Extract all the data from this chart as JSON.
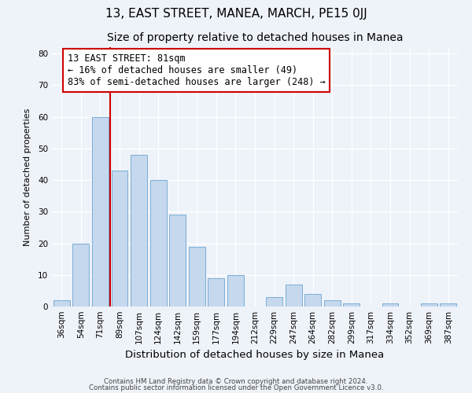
{
  "title": "13, EAST STREET, MANEA, MARCH, PE15 0JJ",
  "subtitle": "Size of property relative to detached houses in Manea",
  "xlabel": "Distribution of detached houses by size in Manea",
  "ylabel": "Number of detached properties",
  "bar_labels": [
    "36sqm",
    "54sqm",
    "71sqm",
    "89sqm",
    "107sqm",
    "124sqm",
    "142sqm",
    "159sqm",
    "177sqm",
    "194sqm",
    "212sqm",
    "229sqm",
    "247sqm",
    "264sqm",
    "282sqm",
    "299sqm",
    "317sqm",
    "334sqm",
    "352sqm",
    "369sqm",
    "387sqm"
  ],
  "bar_values": [
    2,
    20,
    60,
    43,
    48,
    40,
    29,
    19,
    9,
    10,
    0,
    3,
    7,
    4,
    2,
    1,
    0,
    1,
    0,
    1,
    1
  ],
  "bar_color": "#c5d8ee",
  "bar_edge_color": "#7aaed4",
  "vline_color": "#cc0000",
  "annotation_title": "13 EAST STREET: 81sqm",
  "annotation_line1": "← 16% of detached houses are smaller (49)",
  "annotation_line2": "83% of semi-detached houses are larger (248) →",
  "annotation_box_color": "#ffffff",
  "annotation_box_edge": "#cc0000",
  "ylim": [
    0,
    82
  ],
  "yticks": [
    0,
    10,
    20,
    30,
    40,
    50,
    60,
    70,
    80
  ],
  "footer1": "Contains HM Land Registry data © Crown copyright and database right 2024.",
  "footer2": "Contains public sector information licensed under the Open Government Licence v3.0.",
  "background_color": "#eef2f9",
  "title_fontsize": 11,
  "subtitle_fontsize": 10,
  "xlabel_fontsize": 9.5,
  "ylabel_fontsize": 8,
  "tick_fontsize": 7.5,
  "annotation_fontsize": 8.5,
  "footer_fontsize": 6.2
}
